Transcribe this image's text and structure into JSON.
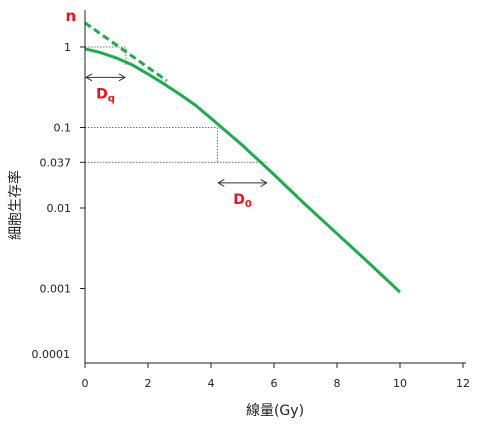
{
  "chart_data": {
    "type": "line",
    "title": "",
    "xlabel": "線量(Gy)",
    "ylabel": "細胞生存率",
    "x_scale": "linear",
    "y_scale": "log",
    "xlim": [
      0,
      12
    ],
    "ylim": [
      0.0001,
      3
    ],
    "x_ticks": [
      "0",
      "2",
      "4",
      "6",
      "8",
      "10",
      "12"
    ],
    "y_ticks": [
      "0.0001",
      "0.001",
      "0.01",
      "0.037",
      "0.1",
      "1"
    ],
    "grid": false,
    "legend": "none",
    "series": [
      {
        "style": "solid",
        "color": "#1aae4a",
        "x": [
          0,
          0.5,
          1.0,
          1.5,
          2.0,
          2.5,
          3.0,
          3.5,
          4.0,
          5.0,
          6.0,
          7.0,
          8.0,
          9.0,
          10.0
        ],
        "y": [
          0.95,
          0.85,
          0.73,
          0.6,
          0.46,
          0.35,
          0.26,
          0.19,
          0.13,
          0.06,
          0.026,
          0.011,
          0.0048,
          0.0021,
          0.0009
        ]
      },
      {
        "style": "dashed",
        "color": "#1aae4a",
        "x": [
          0,
          2.6
        ],
        "y": [
          2.0,
          0.38
        ]
      }
    ],
    "reference_lines": [
      {
        "type": "h",
        "y": 1,
        "x_from": 0,
        "x_to": 1.3
      },
      {
        "type": "v",
        "x": 1.3,
        "y_from": 0.6,
        "y_to": 1
      },
      {
        "type": "h",
        "y": 0.1,
        "x_from": 0,
        "x_to": 4.2
      },
      {
        "type": "v",
        "x": 4.2,
        "y_from": 0.037,
        "y_to": 0.1
      },
      {
        "type": "h",
        "y": 0.037,
        "x_from": 0,
        "x_to": 5.8
      }
    ],
    "brackets": [
      {
        "label": "Dq",
        "label_main": "D",
        "label_sub": "q",
        "x_from": 0,
        "x_to": 1.3,
        "y": 0.42
      },
      {
        "label": "D0",
        "label_main": "D",
        "label_sub": "0",
        "x_from": 4.2,
        "x_to": 5.8,
        "y": 0.0205
      }
    ],
    "annotations": [
      {
        "text": "n",
        "x": -0.45,
        "y": 2.1
      }
    ],
    "colors": {
      "curve": "#1aae4a",
      "annotation": "#e8141b",
      "axis": "#222222"
    }
  }
}
